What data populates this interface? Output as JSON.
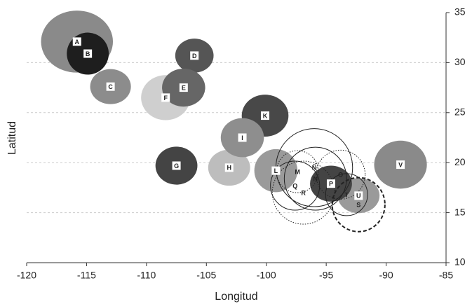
{
  "chart_data": {
    "type": "ellipse-map",
    "x_label": "Longitud",
    "y_label": "Latitud",
    "xlim": [
      -120,
      -85
    ],
    "xticks": [
      -120,
      -115,
      -110,
      -105,
      -100,
      -95,
      -90,
      -85
    ],
    "ylim": [
      10,
      35
    ],
    "yticks": [
      10,
      15,
      20,
      25,
      30,
      35
    ],
    "grid": true,
    "ellipses": [
      {
        "name": "A",
        "lon": -115.8,
        "lat": 32.1,
        "rx": 3.0,
        "ry": 3.1,
        "fill": "#8a8a8a",
        "line": "none"
      },
      {
        "name": "B",
        "lon": -114.9,
        "lat": 30.9,
        "rx": 1.75,
        "ry": 2.1,
        "fill": "#1e1e1e",
        "line": "none"
      },
      {
        "name": "C",
        "lon": -113.0,
        "lat": 27.6,
        "rx": 1.7,
        "ry": 1.75,
        "fill": "#8c8c8c",
        "line": "none"
      },
      {
        "name": "D",
        "lon": -106.0,
        "lat": 30.7,
        "rx": 1.6,
        "ry": 1.7,
        "fill": "#555555",
        "line": "none"
      },
      {
        "name": "F",
        "lon": -108.4,
        "lat": 26.5,
        "rx": 2.05,
        "ry": 2.25,
        "fill": "#cfcfcf",
        "line": "none"
      },
      {
        "name": "E",
        "lon": -106.9,
        "lat": 27.5,
        "rx": 1.8,
        "ry": 1.9,
        "fill": "#666666",
        "line": "none"
      },
      {
        "name": "G",
        "lon": -107.5,
        "lat": 19.7,
        "rx": 1.75,
        "ry": 1.9,
        "fill": "#444444",
        "line": "none"
      },
      {
        "name": "H",
        "lon": -103.1,
        "lat": 19.5,
        "rx": 1.75,
        "ry": 1.8,
        "fill": "#bdbdbd",
        "line": "none"
      },
      {
        "name": "K",
        "lon": -100.1,
        "lat": 24.7,
        "rx": 1.95,
        "ry": 2.1,
        "fill": "#484848",
        "line": "none"
      },
      {
        "name": "I",
        "lon": -102.0,
        "lat": 22.5,
        "rx": 1.8,
        "ry": 1.95,
        "fill": "#8e8e8e",
        "line": "none"
      },
      {
        "name": "L",
        "lon": -99.2,
        "lat": 19.2,
        "rx": 1.8,
        "ry": 2.15,
        "fill": "#9a9a9a",
        "line": "none"
      },
      {
        "name": "V",
        "lon": -88.8,
        "lat": 19.8,
        "rx": 2.2,
        "ry": 2.4,
        "fill": "#8a8a8a",
        "line": "none"
      },
      {
        "name": "U",
        "lon": -92.3,
        "lat": 16.7,
        "rx": 1.75,
        "ry": 1.75,
        "fill": "#9a9a9a",
        "line": "none"
      },
      {
        "name": "P",
        "lon": -94.6,
        "lat": 17.9,
        "rx": 1.75,
        "ry": 1.8,
        "fill": "#444444",
        "line": "none"
      },
      {
        "name": "Ñ",
        "lon": -96.0,
        "lat": 19.5,
        "rx": 3.2,
        "ry": 3.9,
        "fill": "none",
        "line": "solid"
      },
      {
        "name": "N",
        "lon": -95.9,
        "lat": 18.4,
        "rx": 2.6,
        "ry": 3.15,
        "fill": "none",
        "line": "solid"
      },
      {
        "name": "M",
        "lon": -97.4,
        "lat": 19.1,
        "rx": 1.75,
        "ry": 2.1,
        "fill": "none",
        "line": "dotted"
      },
      {
        "name": "O",
        "lon": -93.8,
        "lat": 18.8,
        "rx": 2.05,
        "ry": 2.45,
        "fill": "none",
        "line": "dotted"
      },
      {
        "name": "Q",
        "lon": -97.6,
        "lat": 17.7,
        "rx": 2.05,
        "ry": 2.45,
        "fill": "none",
        "line": "solid"
      },
      {
        "name": "R",
        "lon": -96.9,
        "lat": 17.0,
        "rx": 2.6,
        "ry": 3.15,
        "fill": "none",
        "line": "dotted"
      },
      {
        "name": "T",
        "lon": -93.3,
        "lat": 16.8,
        "rx": 1.75,
        "ry": 2.1,
        "fill": "none",
        "line": "solid"
      },
      {
        "name": "S",
        "lon": -92.3,
        "lat": 15.8,
        "rx": 2.2,
        "ry": 2.7,
        "fill": "none",
        "line": "dashed"
      }
    ]
  }
}
